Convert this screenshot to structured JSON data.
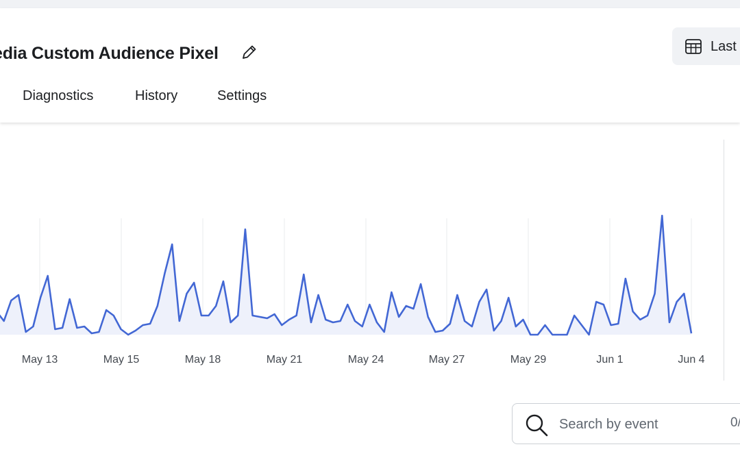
{
  "header": {
    "title": "edia Custom Audience Pixel",
    "date_button_label": "Last",
    "icons": {
      "edit": "pencil-icon",
      "date": "calendar-table-icon"
    }
  },
  "tabs": [
    {
      "label": "Diagnostics"
    },
    {
      "label": "History"
    },
    {
      "label": "Settings"
    }
  ],
  "search": {
    "placeholder": "Search by event",
    "count": "0/",
    "icon": "search-icon"
  },
  "colors": {
    "line": "#4267d4",
    "area": "#eef1fb",
    "grid": "#e9ebee",
    "tab_text": "#1c1e21"
  },
  "chart_data": {
    "type": "area",
    "x_tick_labels": [
      "May 13",
      "May 15",
      "May 18",
      "May 21",
      "May 24",
      "May 27",
      "May 29",
      "Jun 1",
      "Jun 4"
    ],
    "ylim": [
      0,
      100
    ],
    "grid": "vertical",
    "series": [
      {
        "values": [
          17,
          10,
          25,
          29,
          2,
          6,
          27,
          43,
          4,
          5,
          26,
          5,
          6,
          1,
          2,
          18,
          14,
          4,
          0,
          3,
          7,
          8,
          21,
          45,
          66,
          10,
          30,
          38,
          14,
          14,
          21,
          39,
          9,
          14,
          77,
          14,
          13,
          12,
          15,
          7,
          11,
          14,
          44,
          9,
          29,
          11,
          9,
          10,
          22,
          10,
          6,
          22,
          9,
          2,
          31,
          13,
          21,
          19,
          37,
          13,
          2,
          3,
          8,
          29,
          10,
          6,
          24,
          33,
          3,
          10,
          27,
          6,
          11,
          0,
          0,
          7,
          0,
          0,
          0,
          14,
          7,
          0,
          24,
          22,
          7,
          8,
          41,
          17,
          11,
          14,
          30,
          87,
          9,
          24,
          30,
          1
        ]
      }
    ]
  }
}
